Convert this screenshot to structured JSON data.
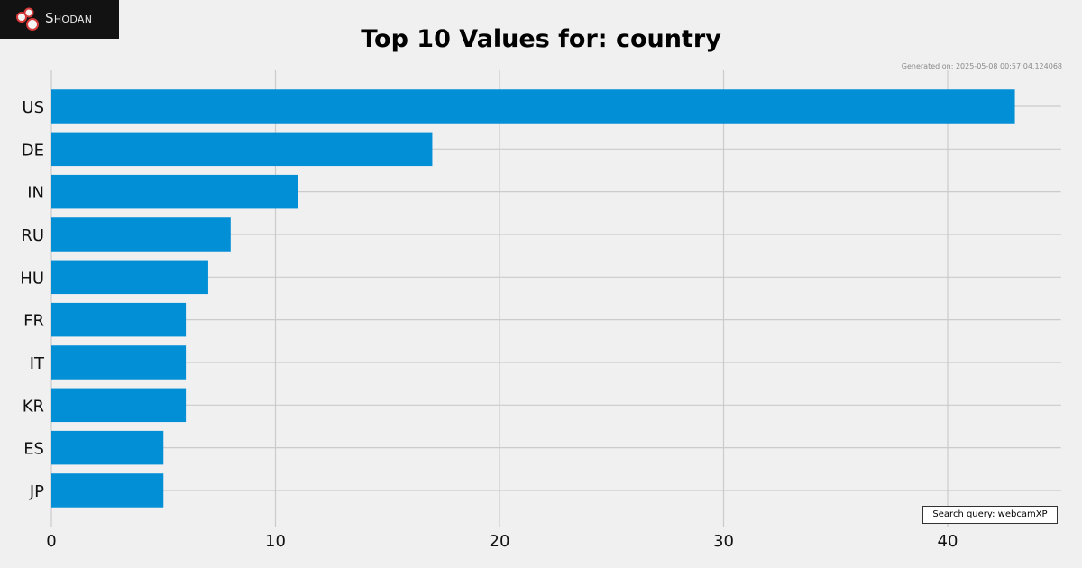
{
  "brand": {
    "name": "Shodan"
  },
  "header": {
    "title": "Top 10 Values for: country",
    "generated": "Generated on: 2025-05-08 00:57:04.124068"
  },
  "query": {
    "label": "Search query: webcamXP"
  },
  "colors": {
    "bar": "#038fd6",
    "grid": "#cbcbcb",
    "background": "#f0f0f0"
  },
  "chart_data": {
    "type": "bar",
    "orientation": "horizontal",
    "title": "Top 10 Values for: country",
    "categories": [
      "US",
      "DE",
      "IN",
      "RU",
      "HU",
      "FR",
      "IT",
      "KR",
      "ES",
      "JP"
    ],
    "values": [
      43,
      17,
      11,
      8,
      7,
      6,
      6,
      6,
      5,
      5
    ],
    "xticks": [
      0,
      10,
      20,
      30,
      40
    ],
    "xlim": [
      0,
      45
    ],
    "grid": true,
    "annotation": "Search query: webcamXP"
  }
}
